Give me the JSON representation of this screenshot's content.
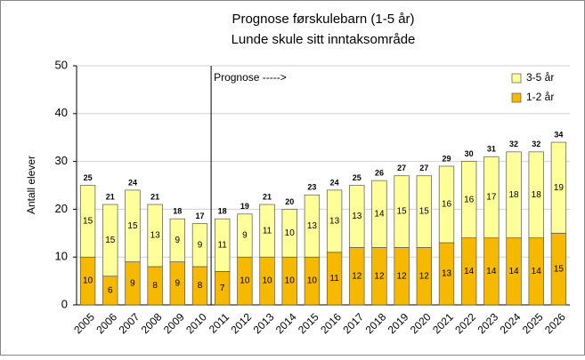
{
  "chart_data": {
    "type": "stacked_bar",
    "title": [
      "Prognose førskulebarn (1-5 år)",
      "Lunde skule sitt inntaksområde"
    ],
    "ylabel": "Antall elever",
    "annotation": "Prognose ----->",
    "categories": [
      "2005",
      "2006",
      "2007",
      "2008",
      "2009",
      "2010",
      "2011",
      "2012",
      "2013",
      "2014",
      "2015",
      "2016",
      "2017",
      "2018",
      "2019",
      "2020",
      "2021",
      "2022",
      "2023",
      "2024",
      "2025",
      "2026"
    ],
    "series": [
      {
        "name": "1-2 år",
        "color": "#f7b900",
        "values": [
          10,
          6,
          9,
          8,
          9,
          8,
          7,
          10,
          10,
          10,
          10,
          11,
          12,
          12,
          12,
          12,
          13,
          14,
          14,
          14,
          14,
          15
        ]
      },
      {
        "name": "3-5 år",
        "color": "#ffff99",
        "values": [
          15,
          15,
          15,
          13,
          9,
          9,
          11,
          9,
          11,
          10,
          13,
          13,
          13,
          14,
          15,
          15,
          16,
          16,
          17,
          18,
          18,
          19
        ]
      }
    ],
    "totals": [
      25,
      21,
      24,
      21,
      18,
      17,
      18,
      19,
      21,
      20,
      23,
      24,
      25,
      26,
      27,
      27,
      29,
      30,
      31,
      32,
      32,
      34
    ],
    "ylim": [
      0,
      50
    ],
    "yticks": [
      0,
      10,
      20,
      30,
      40,
      50
    ],
    "grid": true,
    "legend": "upper right"
  }
}
